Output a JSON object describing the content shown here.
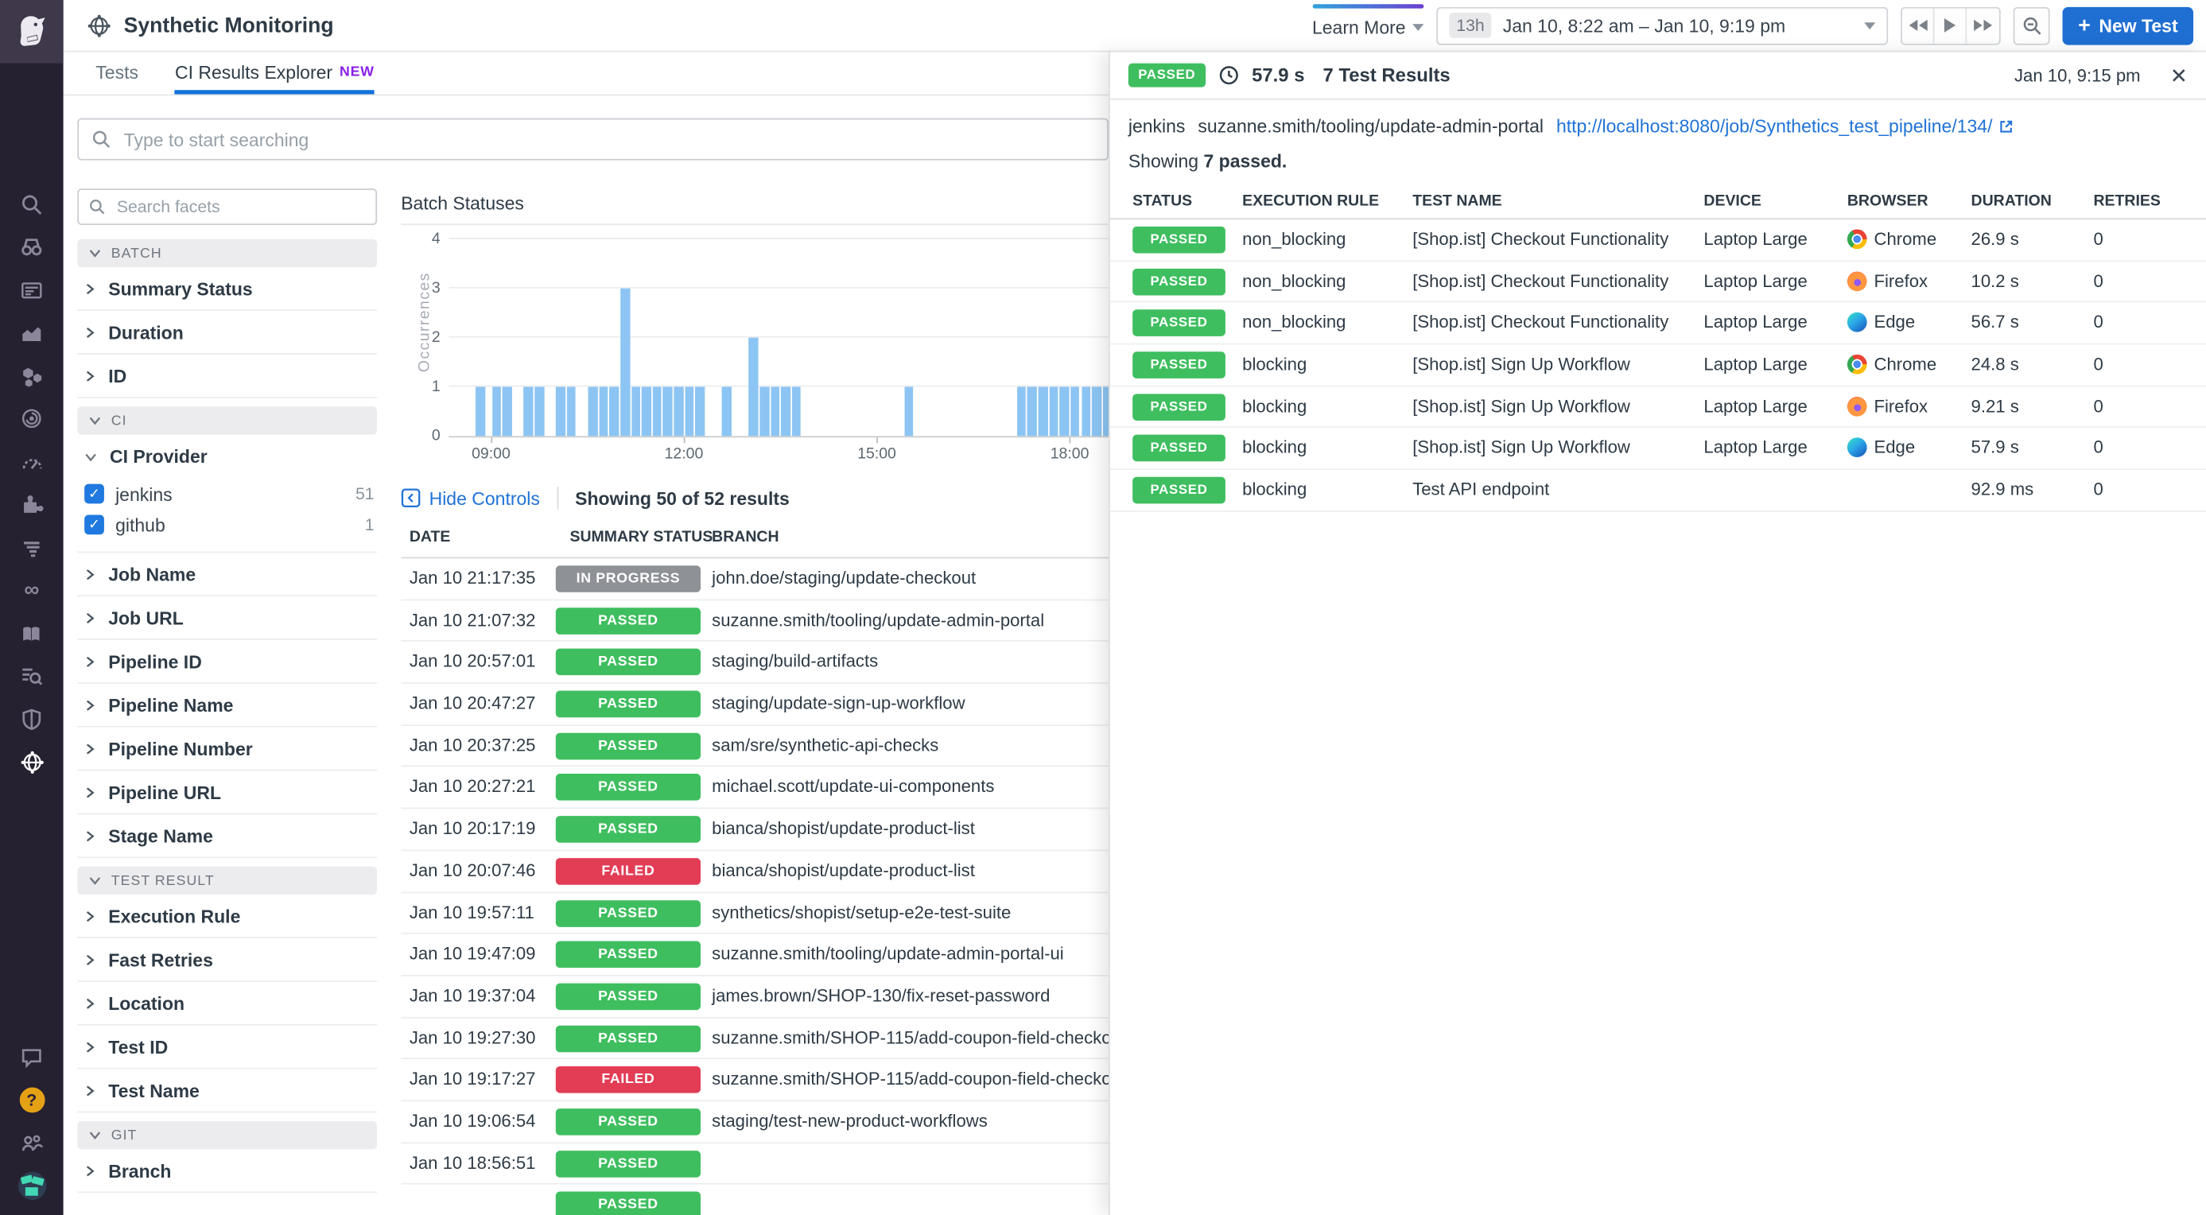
{
  "app": {
    "title": "Synthetic Monitoring",
    "logo_icon": "datadog-dog-icon",
    "title_icon": "synthetics-globe-icon"
  },
  "header": {
    "learn_more_label": "Learn More",
    "time_preset": "13h",
    "time_range": "Jan 10, 8:22 am – Jan 10, 9:19 pm",
    "new_test_label": "New Test",
    "new_test_plus": "+",
    "control_icons": [
      "rewind-icon",
      "play-icon",
      "fast-forward-icon",
      "zoom-out-icon"
    ]
  },
  "tabs": [
    {
      "label": "Tests",
      "active": false
    },
    {
      "label": "CI Results Explorer",
      "badge": "NEW",
      "active": true
    }
  ],
  "rail": {
    "icons": [
      "search",
      "watchdog",
      "dashboards",
      "metrics",
      "infrastructure",
      "apm",
      "monitors",
      "integrations",
      "logs",
      "ci-pipelines",
      "notebooks",
      "log-explorer",
      "security",
      "synthetics"
    ],
    "active_icon": "synthetics",
    "bottom_icons": [
      "chat",
      "help",
      "users",
      "avatar"
    ]
  },
  "search": {
    "placeholder": "Type to start searching"
  },
  "facets": {
    "search_placeholder": "Search facets",
    "groups": [
      {
        "label": "BATCH",
        "items": [
          {
            "label": "Summary Status"
          },
          {
            "label": "Duration"
          },
          {
            "label": "ID"
          }
        ]
      },
      {
        "label": "CI",
        "items": [
          {
            "label": "CI Provider",
            "expanded": true,
            "options": [
              {
                "label": "jenkins",
                "count": "51",
                "checked": true
              },
              {
                "label": "github",
                "count": "1",
                "checked": true
              }
            ]
          },
          {
            "label": "Job Name"
          },
          {
            "label": "Job URL"
          },
          {
            "label": "Pipeline ID"
          },
          {
            "label": "Pipeline Name"
          },
          {
            "label": "Pipeline Number"
          },
          {
            "label": "Pipeline URL"
          },
          {
            "label": "Stage Name"
          }
        ]
      },
      {
        "label": "TEST RESULT",
        "items": [
          {
            "label": "Execution Rule"
          },
          {
            "label": "Fast Retries"
          },
          {
            "label": "Location"
          },
          {
            "label": "Test ID"
          },
          {
            "label": "Test Name"
          }
        ]
      },
      {
        "label": "GIT",
        "items": [
          {
            "label": "Branch"
          }
        ]
      }
    ]
  },
  "chart_data": {
    "type": "bar",
    "title": "Batch Statuses",
    "ylabel": "Occurrences",
    "ylim": [
      0,
      4
    ],
    "yticks": [
      0,
      1,
      2,
      3,
      4
    ],
    "x_ticks": [
      "09:00",
      "12:00",
      "15:00",
      "18:00"
    ],
    "grid": true,
    "bar_color": "#8cc5f3",
    "bars": [
      {
        "time": "08:50",
        "count": 1
      },
      {
        "time": "09:05",
        "count": 1
      },
      {
        "time": "09:15",
        "count": 1
      },
      {
        "time": "09:35",
        "count": 1
      },
      {
        "time": "09:45",
        "count": 1
      },
      {
        "time": "10:05",
        "count": 1
      },
      {
        "time": "10:15",
        "count": 1
      },
      {
        "time": "10:35",
        "count": 1
      },
      {
        "time": "10:45",
        "count": 1
      },
      {
        "time": "10:55",
        "count": 1
      },
      {
        "time": "11:05",
        "count": 3
      },
      {
        "time": "11:15",
        "count": 1
      },
      {
        "time": "11:25",
        "count": 1
      },
      {
        "time": "11:35",
        "count": 1
      },
      {
        "time": "11:45",
        "count": 1
      },
      {
        "time": "11:55",
        "count": 1
      },
      {
        "time": "12:05",
        "count": 1
      },
      {
        "time": "12:15",
        "count": 1
      },
      {
        "time": "12:40",
        "count": 1
      },
      {
        "time": "13:05",
        "count": 2
      },
      {
        "time": "13:15",
        "count": 1
      },
      {
        "time": "13:25",
        "count": 1
      },
      {
        "time": "13:35",
        "count": 1
      },
      {
        "time": "13:45",
        "count": 1
      },
      {
        "time": "15:30",
        "count": 1
      },
      {
        "time": "17:15",
        "count": 1
      },
      {
        "time": "17:25",
        "count": 1
      },
      {
        "time": "17:35",
        "count": 1
      },
      {
        "time": "17:45",
        "count": 1
      },
      {
        "time": "17:55",
        "count": 1
      },
      {
        "time": "18:05",
        "count": 1
      },
      {
        "time": "18:15",
        "count": 1
      },
      {
        "time": "18:25",
        "count": 1
      },
      {
        "time": "18:35",
        "count": 1
      },
      {
        "time": "18:45",
        "count": 1
      }
    ]
  },
  "controls": {
    "hide_controls": "Hide Controls",
    "showing": "Showing 50 of 52 results"
  },
  "batch_table": {
    "columns": [
      "DATE",
      "SUMMARY STATUS",
      "BRANCH"
    ],
    "rows": [
      {
        "date": "Jan 10 21:17:35",
        "status": "IN PROGRESS",
        "branch": "john.doe/staging/update-checkout"
      },
      {
        "date": "Jan 10 21:07:32",
        "status": "PASSED",
        "branch": "suzanne.smith/tooling/update-admin-portal"
      },
      {
        "date": "Jan 10 20:57:01",
        "status": "PASSED",
        "branch": "staging/build-artifacts"
      },
      {
        "date": "Jan 10 20:47:27",
        "status": "PASSED",
        "branch": "staging/update-sign-up-workflow"
      },
      {
        "date": "Jan 10 20:37:25",
        "status": "PASSED",
        "branch": "sam/sre/synthetic-api-checks"
      },
      {
        "date": "Jan 10 20:27:21",
        "status": "PASSED",
        "branch": "michael.scott/update-ui-components"
      },
      {
        "date": "Jan 10 20:17:19",
        "status": "PASSED",
        "branch": "bianca/shopist/update-product-list"
      },
      {
        "date": "Jan 10 20:07:46",
        "status": "FAILED",
        "branch": "bianca/shopist/update-product-list"
      },
      {
        "date": "Jan 10 19:57:11",
        "status": "PASSED",
        "branch": "synthetics/shopist/setup-e2e-test-suite"
      },
      {
        "date": "Jan 10 19:47:09",
        "status": "PASSED",
        "branch": "suzanne.smith/tooling/update-admin-portal-ui"
      },
      {
        "date": "Jan 10 19:37:04",
        "status": "PASSED",
        "branch": "james.brown/SHOP-130/fix-reset-password"
      },
      {
        "date": "Jan 10 19:27:30",
        "status": "PASSED",
        "branch": "suzanne.smith/SHOP-115/add-coupon-field-checkout"
      },
      {
        "date": "Jan 10 19:17:27",
        "status": "FAILED",
        "branch": "suzanne.smith/SHOP-115/add-coupon-field-checkout"
      },
      {
        "date": "Jan 10 19:06:54",
        "status": "PASSED",
        "branch": "staging/test-new-product-workflows"
      },
      {
        "date": "Jan 10 18:56:51",
        "status": "PASSED",
        "branch": ""
      }
    ],
    "partial_row": {
      "date": "",
      "status": "PASSED",
      "branch": ""
    }
  },
  "panel": {
    "status": "PASSED",
    "clock_icon": "clock-icon",
    "duration": "57.9 s",
    "results_count": "7 Test Results",
    "timestamp": "Jan 10, 9:15 pm",
    "close_icon": "close-icon",
    "provider": "jenkins",
    "pipeline": "suzanne.smith/tooling/update-admin-portal",
    "link": "http://localhost:8080/job/Synthetics_test_pipeline/134/",
    "link_icon": "external-link-icon",
    "showing_prefix": "Showing",
    "showing_bold": "7 passed.",
    "columns": [
      "STATUS",
      "EXECUTION RULE",
      "TEST NAME",
      "DEVICE",
      "BROWSER",
      "DURATION",
      "RETRIES"
    ],
    "rows": [
      {
        "status": "PASSED",
        "rule": "non_blocking",
        "name": "[Shop.ist] Checkout Functionality",
        "device": "Laptop Large",
        "browser": "Chrome",
        "duration": "26.9 s",
        "retries": "0"
      },
      {
        "status": "PASSED",
        "rule": "non_blocking",
        "name": "[Shop.ist] Checkout Functionality",
        "device": "Laptop Large",
        "browser": "Firefox",
        "duration": "10.2 s",
        "retries": "0"
      },
      {
        "status": "PASSED",
        "rule": "non_blocking",
        "name": "[Shop.ist] Checkout Functionality",
        "device": "Laptop Large",
        "browser": "Edge",
        "duration": "56.7 s",
        "retries": "0"
      },
      {
        "status": "PASSED",
        "rule": "blocking",
        "name": "[Shop.ist] Sign Up Workflow",
        "device": "Laptop Large",
        "browser": "Chrome",
        "duration": "24.8 s",
        "retries": "0"
      },
      {
        "status": "PASSED",
        "rule": "blocking",
        "name": "[Shop.ist] Sign Up Workflow",
        "device": "Laptop Large",
        "browser": "Firefox",
        "duration": "9.21 s",
        "retries": "0"
      },
      {
        "status": "PASSED",
        "rule": "blocking",
        "name": "[Shop.ist] Sign Up Workflow",
        "device": "Laptop Large",
        "browser": "Edge",
        "duration": "57.9 s",
        "retries": "0"
      },
      {
        "status": "PASSED",
        "rule": "blocking",
        "name": "Test API endpoint",
        "device": "",
        "browser": "",
        "duration": "92.9 ms",
        "retries": "0"
      }
    ]
  },
  "colors": {
    "pass_green": "#3fbe5f",
    "fail_red": "#e23d55",
    "in_progress_gray": "#8e9196",
    "accent_blue": "#1f6ed2",
    "link_blue": "#2073d6",
    "tab_underline": "#1272d9",
    "new_badge_purple": "#8a1ee8",
    "bar_blue": "#8cc5f3",
    "rail_bg": "#262130",
    "help_orange": "#e5a116"
  }
}
